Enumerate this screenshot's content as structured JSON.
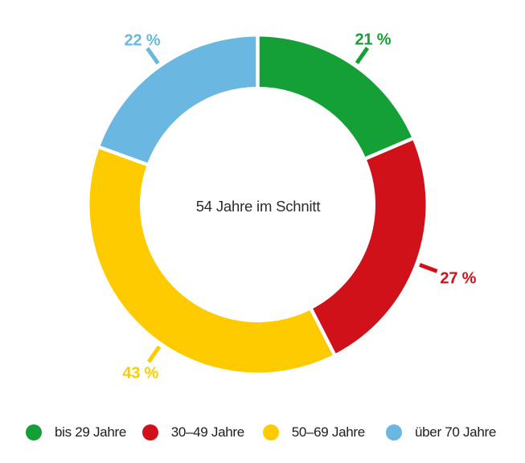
{
  "chart_data": {
    "type": "donut",
    "center_label": "54 Jahre im Schnitt",
    "unit": "%",
    "segments": [
      {
        "label": "bis 29 Jahre",
        "value": 21,
        "callout": "21 %",
        "color": "#15a037",
        "callout_angle": 35,
        "callout_radius": 250
      },
      {
        "label": "30–49 Jahre",
        "value": 27,
        "callout": "27 %",
        "color": "#d01119",
        "callout_angle": 110.4,
        "callout_radius": 266
      },
      {
        "label": "50–69 Jahre",
        "value": 43,
        "callout": "43 %",
        "color": "#fecb00",
        "callout_angle": 214.7,
        "callout_radius": 256
      },
      {
        "label": "über 70 Jahre",
        "value": 22,
        "callout": "22 %",
        "color": "#6ab7e2",
        "callout_angle": 324.8,
        "callout_radius": 249
      }
    ],
    "legend_position": "bottom",
    "grid": false
  }
}
